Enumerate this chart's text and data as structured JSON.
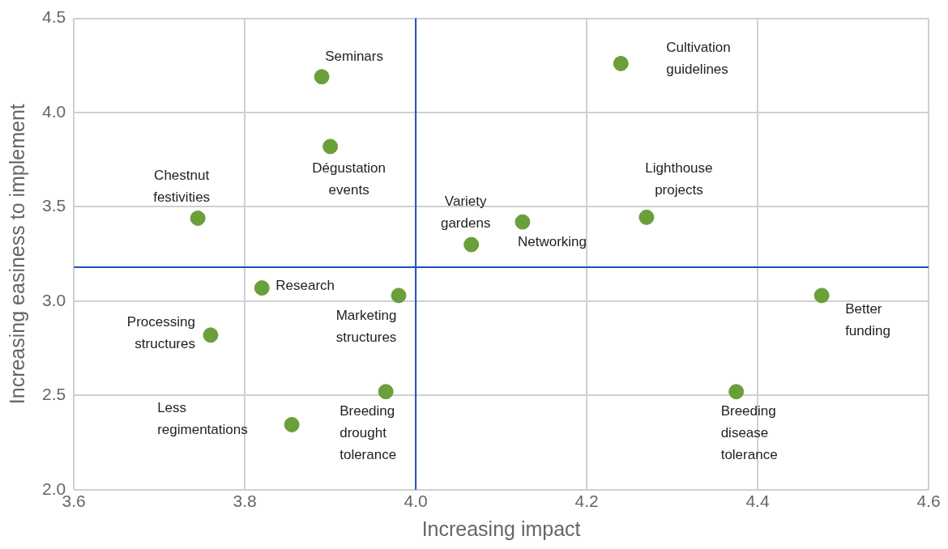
{
  "chart_data": {
    "type": "scatter",
    "xlabel": "Increasing impact",
    "ylabel": "Increasing easiness to implement",
    "xlim": [
      3.6,
      4.6
    ],
    "ylim": [
      2.0,
      4.5
    ],
    "xticks": [
      {
        "value": 3.6,
        "label": "3.6"
      },
      {
        "value": 3.8,
        "label": "3.8"
      },
      {
        "value": 4.0,
        "label": "4.0"
      },
      {
        "value": 4.2,
        "label": "4.2"
      },
      {
        "value": 4.4,
        "label": "4.4"
      },
      {
        "value": 4.6,
        "label": "4.6"
      }
    ],
    "yticks": [
      {
        "value": 2.0,
        "label": "2.0"
      },
      {
        "value": 2.5,
        "label": "2.5"
      },
      {
        "value": 3.0,
        "label": "3.0"
      },
      {
        "value": 3.5,
        "label": "3.5"
      },
      {
        "value": 4.0,
        "label": "4.0"
      },
      {
        "value": 4.5,
        "label": "4.5"
      }
    ],
    "grid": true,
    "marker": "circle",
    "series": [
      {
        "name": "Seminars",
        "color": "#6a9f3a",
        "x": [
          3.89
        ],
        "values": [
          4.19
        ]
      },
      {
        "name": "Cultivation guidelines",
        "color": "#6a9f3a",
        "x": [
          4.24
        ],
        "values": [
          4.26
        ]
      },
      {
        "name": "Dégustation events",
        "color": "#6a9f3a",
        "x": [
          3.9
        ],
        "values": [
          3.82
        ]
      },
      {
        "name": "Chestnut festivities",
        "color": "#6a9f3a",
        "x": [
          3.745
        ],
        "values": [
          3.44
        ]
      },
      {
        "name": "Variety gardens",
        "color": "#6a9f3a",
        "x": [
          4.065
        ],
        "values": [
          3.3
        ]
      },
      {
        "name": "Networking",
        "color": "#6a9f3a",
        "x": [
          4.125
        ],
        "values": [
          3.42
        ]
      },
      {
        "name": "Lighthouse projects",
        "color": "#6a9f3a",
        "x": [
          4.27
        ],
        "values": [
          3.445
        ]
      },
      {
        "name": "Research",
        "color": "#6a9f3a",
        "x": [
          3.82
        ],
        "values": [
          3.07
        ]
      },
      {
        "name": "Marketing structures",
        "color": "#6a9f3a",
        "x": [
          3.98
        ],
        "values": [
          3.03
        ]
      },
      {
        "name": "Processing structures",
        "color": "#6a9f3a",
        "x": [
          3.76
        ],
        "values": [
          2.82
        ]
      },
      {
        "name": "Less regimentations",
        "color": "#6a9f3a",
        "x": [
          3.855
        ],
        "values": [
          2.345
        ]
      },
      {
        "name": "Breeding drought tolerance",
        "color": "#6a9f3a",
        "x": [
          3.965
        ],
        "values": [
          2.52
        ]
      },
      {
        "name": "Breeding disease tolerance",
        "color": "#6a9f3a",
        "x": [
          4.375
        ],
        "values": [
          2.52
        ]
      },
      {
        "name": "Better funding",
        "color": "#6a9f3a",
        "x": [
          4.475
        ],
        "values": [
          3.03
        ]
      }
    ],
    "ref_lines": [
      {
        "axis": "x",
        "value": 4.0,
        "color": "#1f4fbf"
      },
      {
        "axis": "y",
        "value": 3.18,
        "color": "#1f4fbf"
      }
    ]
  }
}
